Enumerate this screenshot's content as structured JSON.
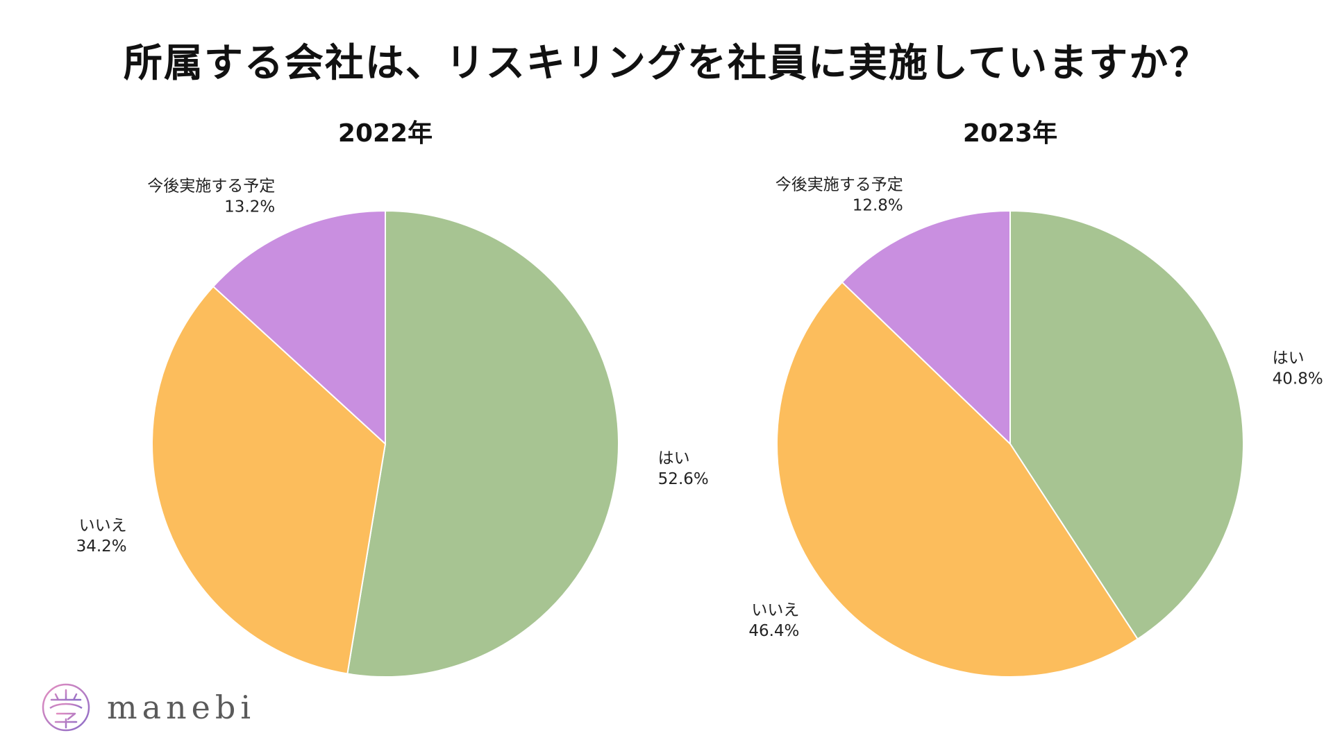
{
  "page": {
    "title": "所属する会社は、リスキリングを社員に実施していますか？"
  },
  "colors": {
    "yes": "#a7c492",
    "no": "#fcbd5c",
    "planned": "#c98fe0"
  },
  "chart_data": [
    {
      "type": "pie",
      "title": "2022年",
      "start_angle_deg": 0,
      "direction": "clockwise",
      "slices": [
        {
          "label": "はい",
          "value": 52.6,
          "value_text": "52.6%",
          "color": "#a7c492"
        },
        {
          "label": "いいえ",
          "value": 34.2,
          "value_text": "34.2%",
          "color": "#fcbd5c"
        },
        {
          "label": "今後実施する予定",
          "value": 13.2,
          "value_text": "13.2%",
          "color": "#c98fe0"
        }
      ]
    },
    {
      "type": "pie",
      "title": "2023年",
      "start_angle_deg": 0,
      "direction": "clockwise",
      "slices": [
        {
          "label": "はい",
          "value": 40.8,
          "value_text": "40.8%",
          "color": "#a7c492"
        },
        {
          "label": "いいえ",
          "value": 46.4,
          "value_text": "46.4%",
          "color": "#fcbd5c"
        },
        {
          "label": "今後実施する予定",
          "value": 12.8,
          "value_text": "12.8%",
          "color": "#c98fe0"
        }
      ]
    }
  ],
  "logo": {
    "text": "manebi"
  }
}
